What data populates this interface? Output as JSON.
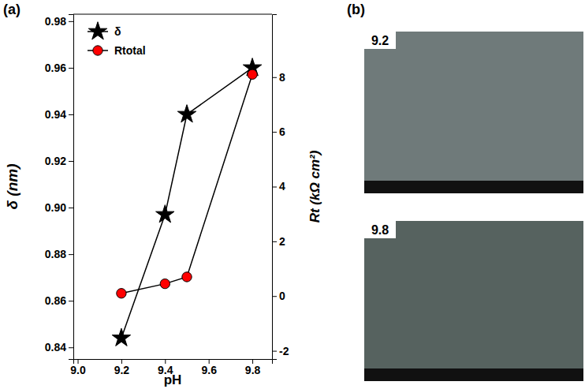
{
  "chart_data": {
    "type": "line",
    "x_label": "pH",
    "y_label": "δ (nm)",
    "y2_label": "Rt (kΩ cm²)",
    "x": [
      9.2,
      9.4,
      9.5,
      9.8
    ],
    "xlim": [
      8.98,
      9.89
    ],
    "xticks": [
      {
        "value": 9.0,
        "label": "9.0"
      },
      9.2,
      9.4,
      9.6,
      9.8
    ],
    "ylim": [
      0.835,
      0.983
    ],
    "yticks": [
      0.84,
      0.86,
      0.88,
      {
        "value": 0.9,
        "label": "0.90"
      },
      0.92,
      0.94,
      0.96,
      0.98
    ],
    "y2lim": [
      -2.3,
      10.3
    ],
    "y2ticks": [
      -2,
      0,
      2,
      4,
      6,
      8
    ],
    "legend": "upper left",
    "series": [
      {
        "name": "δ",
        "color": "#000000",
        "marker": "star",
        "values": [
          0.844,
          0.897,
          0.94,
          0.96
        ]
      },
      {
        "name": "Rtotal",
        "color": "#ff0000",
        "marker": "circle",
        "axis": "y2",
        "values": [
          0.1,
          0.45,
          0.7,
          8.1
        ]
      }
    ]
  },
  "panel_labels": [
    "(a)",
    "(b)"
  ],
  "images": [
    {
      "label": "9.2"
    },
    {
      "label": "9.8"
    }
  ]
}
